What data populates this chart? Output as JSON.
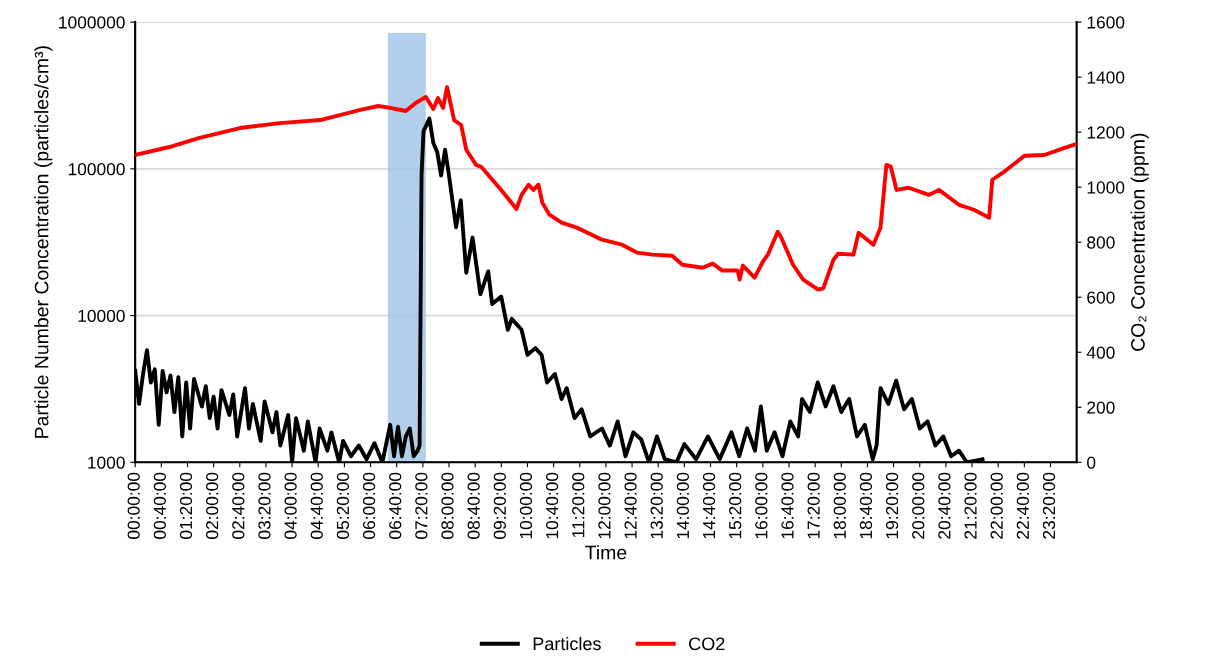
{
  "chart_data": {
    "type": "line",
    "xlabel": "Time",
    "ylabel": "Particle Number Concentration (particles/cm³)",
    "y2label": "CO₂ Concentration (ppm)",
    "log": "y",
    "grid": "y",
    "legend": "bottom",
    "marker": "none",
    "line_style": "solid",
    "xlim": [
      0,
      24
    ],
    "xticks": [
      {
        "value": 0,
        "label": "00:00:00"
      },
      {
        "value": 0.6667,
        "label": "00:40:00"
      },
      {
        "value": 1.3333,
        "label": "01:20:00"
      },
      {
        "value": 2,
        "label": "02:00:00"
      },
      {
        "value": 2.6667,
        "label": "02:40:00"
      },
      {
        "value": 3.3333,
        "label": "03:20:00"
      },
      {
        "value": 4,
        "label": "04:00:00"
      },
      {
        "value": 4.6667,
        "label": "04:40:00"
      },
      {
        "value": 5.3333,
        "label": "05:20:00"
      },
      {
        "value": 6,
        "label": "06:00:00"
      },
      {
        "value": 6.6667,
        "label": "06:40:00"
      },
      {
        "value": 7.3333,
        "label": "07:20:00"
      },
      {
        "value": 8,
        "label": "08:00:00"
      },
      {
        "value": 8.6667,
        "label": "08:40:00"
      },
      {
        "value": 9.3333,
        "label": "09:20:00"
      },
      {
        "value": 10,
        "label": "10:00:00"
      },
      {
        "value": 10.6667,
        "label": "10:40:00"
      },
      {
        "value": 11.3333,
        "label": "11:20:00"
      },
      {
        "value": 12,
        "label": "12:00:00"
      },
      {
        "value": 12.6667,
        "label": "12:40:00"
      },
      {
        "value": 13.3333,
        "label": "13:20:00"
      },
      {
        "value": 14,
        "label": "14:00:00"
      },
      {
        "value": 14.6667,
        "label": "14:40:00"
      },
      {
        "value": 15.3333,
        "label": "15:20:00"
      },
      {
        "value": 16,
        "label": "16:00:00"
      },
      {
        "value": 16.6667,
        "label": "16:40:00"
      },
      {
        "value": 17.3333,
        "label": "17:20:00"
      },
      {
        "value": 18,
        "label": "18:00:00"
      },
      {
        "value": 18.6667,
        "label": "18:40:00"
      },
      {
        "value": 19.3333,
        "label": "19:20:00"
      },
      {
        "value": 20,
        "label": "20:00:00"
      },
      {
        "value": 20.6667,
        "label": "20:40:00"
      },
      {
        "value": 21.3333,
        "label": "21:20:00"
      },
      {
        "value": 22,
        "label": "22:00:00"
      },
      {
        "value": 22.6667,
        "label": "22:40:00"
      },
      {
        "value": 23.3333,
        "label": "23:20:00"
      }
    ],
    "ylim": [
      1000,
      1000000
    ],
    "yticks": [
      1000,
      10000,
      100000,
      1000000
    ],
    "y2lim": [
      0,
      1600
    ],
    "y2ticks": [
      0,
      200,
      400,
      600,
      800,
      1000,
      1200,
      1400,
      1600
    ],
    "bands": [
      {
        "axis": "x",
        "from": 6.44,
        "to": 7.41,
        "color": "#9dc3e6"
      }
    ],
    "series": [
      {
        "name": "Particles",
        "color": "#000000",
        "x": [
          0.0,
          0.1,
          0.2,
          0.3,
          0.4,
          0.5,
          0.6,
          0.7,
          0.8,
          0.9,
          1.0,
          1.1,
          1.2,
          1.3,
          1.4,
          1.5,
          1.7,
          1.8,
          1.9,
          2.0,
          2.1,
          2.2,
          2.4,
          2.5,
          2.6,
          2.8,
          2.9,
          3.0,
          3.2,
          3.3,
          3.5,
          3.6,
          3.7,
          3.9,
          4.0,
          4.1,
          4.3,
          4.4,
          4.6,
          4.7,
          4.9,
          5.0,
          5.2,
          5.3,
          5.5,
          5.7,
          5.9,
          6.1,
          6.3,
          6.5,
          6.6,
          6.7,
          6.8,
          6.9,
          7.0,
          7.1,
          7.2,
          7.25,
          7.3,
          7.35,
          7.5,
          7.6,
          7.7,
          7.8,
          7.9,
          8.0,
          8.18,
          8.3,
          8.44,
          8.6,
          8.8,
          9.0,
          9.1,
          9.33,
          9.5,
          9.6,
          9.85,
          10.0,
          10.2,
          10.36,
          10.5,
          10.7,
          10.87,
          11.0,
          11.2,
          11.38,
          11.6,
          11.9,
          12.1,
          12.3,
          12.5,
          12.7,
          12.9,
          13.1,
          13.3,
          13.5,
          13.8,
          14.0,
          14.3,
          14.6,
          14.9,
          15.2,
          15.4,
          15.6,
          15.8,
          15.95,
          16.1,
          16.3,
          16.5,
          16.7,
          16.9,
          17.0,
          17.2,
          17.4,
          17.6,
          17.8,
          18.0,
          18.2,
          18.4,
          18.6,
          18.8,
          18.9,
          19.0,
          19.2,
          19.4,
          19.6,
          19.8,
          20.0,
          20.2,
          20.4,
          20.6,
          20.8,
          21.0,
          21.2,
          21.6
        ],
        "values": [
          4200,
          2500,
          4000,
          5800,
          3500,
          4300,
          1800,
          4200,
          3000,
          3900,
          2200,
          3800,
          1500,
          3500,
          1700,
          3700,
          2400,
          3300,
          2000,
          2800,
          1700,
          3100,
          2100,
          2900,
          1500,
          3200,
          1700,
          2500,
          1400,
          2600,
          1600,
          2200,
          1300,
          2100,
          1000,
          2000,
          1200,
          1900,
          1000,
          1700,
          1200,
          1600,
          1000,
          1400,
          1100,
          1300,
          1050,
          1350,
          1000,
          1800,
          1100,
          1750,
          1100,
          1500,
          1700,
          1100,
          1200,
          1300,
          90000,
          180000,
          220000,
          150000,
          130000,
          90000,
          135000,
          90000,
          40000,
          61000,
          19600,
          34000,
          14000,
          20000,
          12000,
          13500,
          8000,
          9500,
          8000,
          5400,
          6000,
          5400,
          3500,
          4000,
          2700,
          3200,
          2000,
          2300,
          1500,
          1700,
          1300,
          1900,
          1100,
          1600,
          1430,
          1000,
          1500,
          1050,
          1000,
          1330,
          1050,
          1500,
          1050,
          1600,
          1100,
          1700,
          1200,
          2400,
          1200,
          1600,
          1100,
          1900,
          1500,
          2700,
          2200,
          3500,
          2400,
          3300,
          2200,
          2700,
          1500,
          1800,
          1050,
          1300,
          3200,
          2500,
          3600,
          2300,
          2700,
          1700,
          1900,
          1300,
          1500,
          1100,
          1200,
          1000,
          1050
        ]
      },
      {
        "name": "CO2",
        "color": "#ff0000",
        "axis": "y2",
        "x": [
          0,
          0.87,
          1.64,
          2.67,
          3.69,
          4.72,
          5.74,
          6.2,
          6.5,
          6.9,
          7.15,
          7.41,
          7.6,
          7.72,
          7.85,
          7.95,
          8.13,
          8.31,
          8.44,
          8.69,
          8.82,
          9.33,
          9.72,
          9.85,
          10.03,
          10.15,
          10.28,
          10.38,
          10.56,
          10.87,
          11.26,
          11.9,
          12.41,
          12.8,
          13.18,
          13.69,
          13.95,
          14.46,
          14.72,
          14.97,
          15.36,
          15.41,
          15.49,
          15.79,
          16.0,
          16.13,
          16.38,
          16.46,
          16.77,
          17.03,
          17.41,
          17.54,
          17.8,
          17.92,
          18.31,
          18.44,
          18.82,
          19.0,
          19.15,
          19.26,
          19.41,
          19.72,
          20.23,
          20.49,
          21.0,
          21.38,
          21.77,
          21.85,
          22.15,
          22.67,
          23.18,
          23.69,
          24.0
        ],
        "values": [
          1117,
          1146,
          1179,
          1215,
          1233,
          1244,
          1281,
          1295,
          1288,
          1277,
          1306,
          1328,
          1284,
          1324,
          1288,
          1364,
          1244,
          1226,
          1136,
          1081,
          1074,
          990,
          921,
          972,
          1009,
          990,
          1009,
          943,
          900,
          871,
          853,
          809,
          791,
          762,
          755,
          751,
          718,
          707,
          722,
          697,
          697,
          664,
          715,
          671,
          729,
          755,
          838,
          820,
          718,
          664,
          628,
          632,
          736,
          758,
          755,
          834,
          791,
          853,
          1081,
          1075,
          990,
          998,
          972,
          990,
          936,
          918,
          889,
          1027,
          1056,
          1114,
          1117,
          1143,
          1157
        ]
      }
    ]
  }
}
